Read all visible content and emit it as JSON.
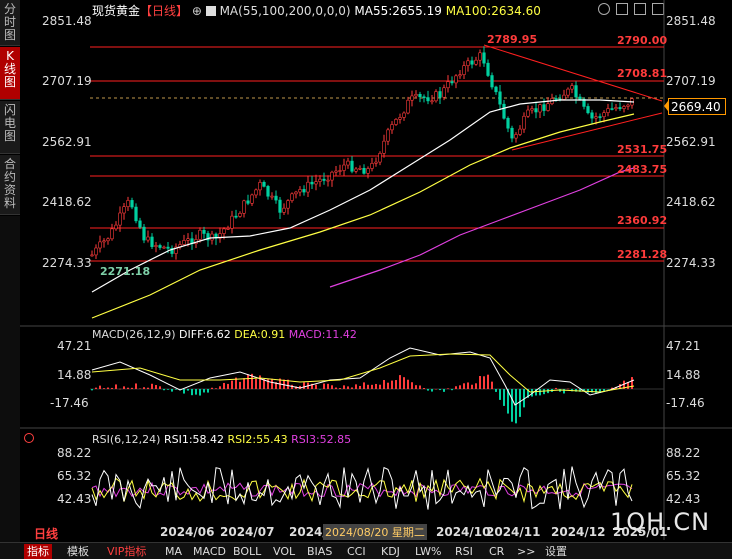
{
  "sidebar": {
    "tabs": [
      {
        "label": "分时图"
      },
      {
        "label": "K线图"
      },
      {
        "label": "闪电图"
      },
      {
        "label": "合约资料"
      }
    ]
  },
  "header": {
    "title": "现货黄金",
    "period": "【日线】",
    "add_symbol": "⊕",
    "ma_params": "MA(55,100,200,0,0,0)",
    "ma55": "MA55:2655.19",
    "ma100": "MA100:2634.60"
  },
  "window_controls": {
    "icons": [
      "settings-icon",
      "minimize-icon",
      "restore-icon",
      "maximize-icon"
    ]
  },
  "price_axis": {
    "left": [
      "2851.48",
      "2707.19",
      "2562.91",
      "2418.62",
      "2274.33"
    ],
    "right": [
      "2851.48",
      "2707.19",
      "2562.91",
      "2418.62",
      "2274.33"
    ],
    "current_price": "2669.40"
  },
  "levels": [
    "2790.00",
    "2708.81",
    "2531.75",
    "2483.75",
    "2360.92",
    "2281.28"
  ],
  "annotations": {
    "high": "2789.95",
    "low": "2271.18"
  },
  "macd": {
    "params": "MACD(26,12,9)",
    "diff": "DIFF:6.62",
    "dea": "DEA:0.91",
    "macd": "MACD:11.42",
    "axis": [
      "47.21",
      "14.88",
      "-17.46"
    ]
  },
  "rsi": {
    "params": "RSI(6,12,24)",
    "rsi1": "RSI1:58.42",
    "rsi2": "RSI2:55.43",
    "rsi3": "RSI3:52.85",
    "axis": [
      "88.22",
      "65.32",
      "42.43"
    ]
  },
  "time_axis": {
    "labels": [
      "2024/06",
      "2024/07",
      "2024/",
      "2024/10",
      "2024/11",
      "2024/12",
      "2025/01"
    ],
    "cursor_date": "2024/08/20 星期二"
  },
  "period_label": "日线",
  "watermark": "1QH.CN",
  "bottom_tabs": [
    "指标",
    "模板",
    "VIP指标",
    "MA",
    "MACD",
    "BOLL",
    "VOL",
    "BIAS",
    "CCI",
    "KDJ",
    "LW%",
    "RSI",
    "CR",
    ">>",
    "设置"
  ],
  "colors": {
    "up": "#ff3b3b",
    "down": "#00d0a0",
    "ma55": "#ffffff",
    "ma100": "#ffff44",
    "ma200": "#e040e0",
    "level": "#ff2020"
  }
}
